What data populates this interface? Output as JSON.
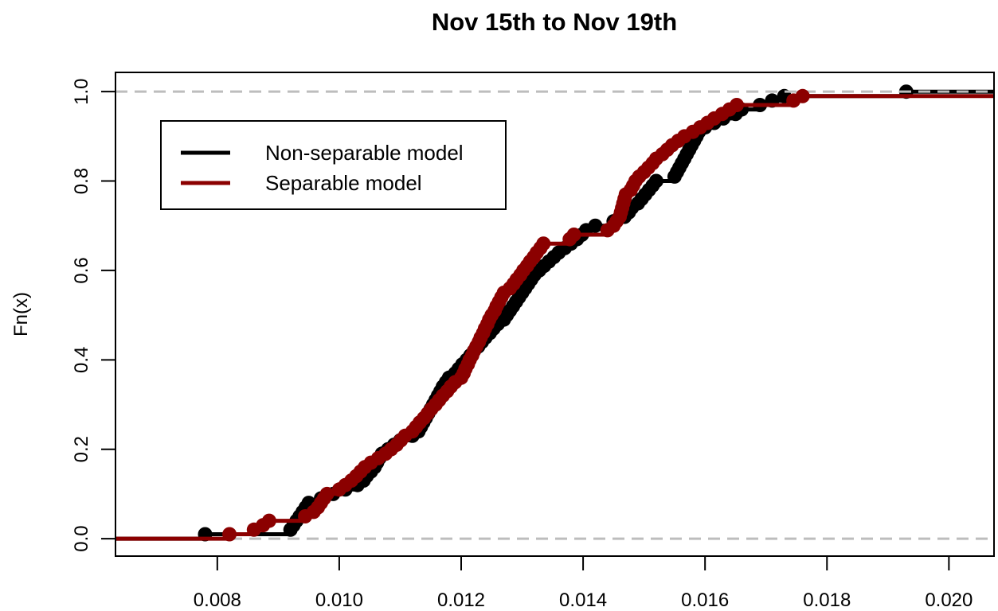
{
  "chart_data": {
    "type": "line",
    "subtype": "ecdf_step",
    "title": "Nov 15th to Nov 19th",
    "xlabel": "",
    "ylabel": "Fn(x)",
    "xlim": [
      0.00633,
      0.02074
    ],
    "ylim": [
      -0.039,
      1.043
    ],
    "x_ticks": {
      "values": [
        0.008,
        0.01,
        0.012,
        0.014,
        0.016,
        0.018,
        0.02
      ],
      "labels": [
        "0.008",
        "0.010",
        "0.012",
        "0.014",
        "0.016",
        "0.018",
        "0.020"
      ]
    },
    "y_ticks": {
      "values": [
        0.0,
        0.2,
        0.4,
        0.6,
        0.8,
        1.0
      ],
      "labels": [
        "0.0",
        "0.2",
        "0.4",
        "0.6",
        "0.8",
        "1.0"
      ]
    },
    "gridlines": {
      "y_values": [
        0,
        1
      ],
      "color": "#bdbdbd",
      "style": "dashed"
    },
    "legend": {
      "position": "top-left",
      "items": [
        {
          "label": "Non-separable model",
          "color": "#000000"
        },
        {
          "label": "Separable model",
          "color": "#8B0000"
        }
      ]
    },
    "series": [
      {
        "name": "Non-separable model",
        "color": "#000000",
        "n": 100,
        "final_value": 1.0,
        "sample_x": [
          0.0078,
          0.0092,
          0.00925,
          0.0093,
          0.00935,
          0.0094,
          0.00945,
          0.0095,
          0.0097,
          0.0099,
          0.0101,
          0.0103,
          0.0104,
          0.01045,
          0.01052,
          0.01058,
          0.01062,
          0.01066,
          0.0107,
          0.0108,
          0.0109,
          0.011,
          0.0112,
          0.0113,
          0.01134,
          0.01138,
          0.01142,
          0.01146,
          0.0115,
          0.01154,
          0.01158,
          0.01162,
          0.01166,
          0.0117,
          0.01175,
          0.0118,
          0.0119,
          0.01196,
          0.01202,
          0.01209,
          0.01215,
          0.01221,
          0.01228,
          0.01234,
          0.0124,
          0.01247,
          0.01253,
          0.0126,
          0.0127,
          0.01275,
          0.0128,
          0.01285,
          0.0129,
          0.01295,
          0.013,
          0.01305,
          0.0131,
          0.01315,
          0.0132,
          0.01328,
          0.01336,
          0.01344,
          0.01352,
          0.0136,
          0.0137,
          0.0138,
          0.0139,
          0.01398,
          0.01405,
          0.0142,
          0.0145,
          0.01468,
          0.01475,
          0.0148,
          0.0149,
          0.01496,
          0.01502,
          0.01508,
          0.01514,
          0.0152,
          0.0155,
          0.01554,
          0.01558,
          0.01562,
          0.01566,
          0.0157,
          0.01574,
          0.01578,
          0.01582,
          0.01586,
          0.0159,
          0.016,
          0.01615,
          0.0163,
          0.0165,
          0.0166,
          0.0169,
          0.0171,
          0.0173,
          0.0193
        ]
      },
      {
        "name": "Separable model",
        "color": "#8B0000",
        "n": 100,
        "final_value": 0.99,
        "sample_x": [
          0.0082,
          0.0086,
          0.00875,
          0.00885,
          0.00944,
          0.00958,
          0.00965,
          0.0097,
          0.00975,
          0.0098,
          0.01,
          0.0101,
          0.0102,
          0.01028,
          0.01035,
          0.01042,
          0.01052,
          0.01064,
          0.01076,
          0.01085,
          0.01094,
          0.01101,
          0.01108,
          0.0112,
          0.01126,
          0.01132,
          0.01139,
          0.01145,
          0.01151,
          0.01158,
          0.01164,
          0.0117,
          0.01177,
          0.01183,
          0.0119,
          0.012,
          0.01204,
          0.01207,
          0.01211,
          0.01214,
          0.01218,
          0.01221,
          0.01225,
          0.01229,
          0.01232,
          0.01236,
          0.01239,
          0.01243,
          0.01246,
          0.0125,
          0.01255,
          0.01258,
          0.01262,
          0.01266,
          0.0127,
          0.0128,
          0.01286,
          0.01291,
          0.01297,
          0.01302,
          0.01308,
          0.01313,
          0.01319,
          0.01324,
          0.0133,
          0.01335,
          0.01378,
          0.01385,
          0.0144,
          0.0145,
          0.01455,
          0.0146,
          0.01462,
          0.01464,
          0.01466,
          0.01468,
          0.0147,
          0.01478,
          0.01482,
          0.01486,
          0.01492,
          0.015,
          0.01507,
          0.01514,
          0.0152,
          0.0153,
          0.01538,
          0.01546,
          0.01556,
          0.01566,
          0.0158,
          0.01592,
          0.01604,
          0.01615,
          0.01628,
          0.0164,
          0.01652,
          0.01745,
          0.0176
        ]
      }
    ]
  }
}
